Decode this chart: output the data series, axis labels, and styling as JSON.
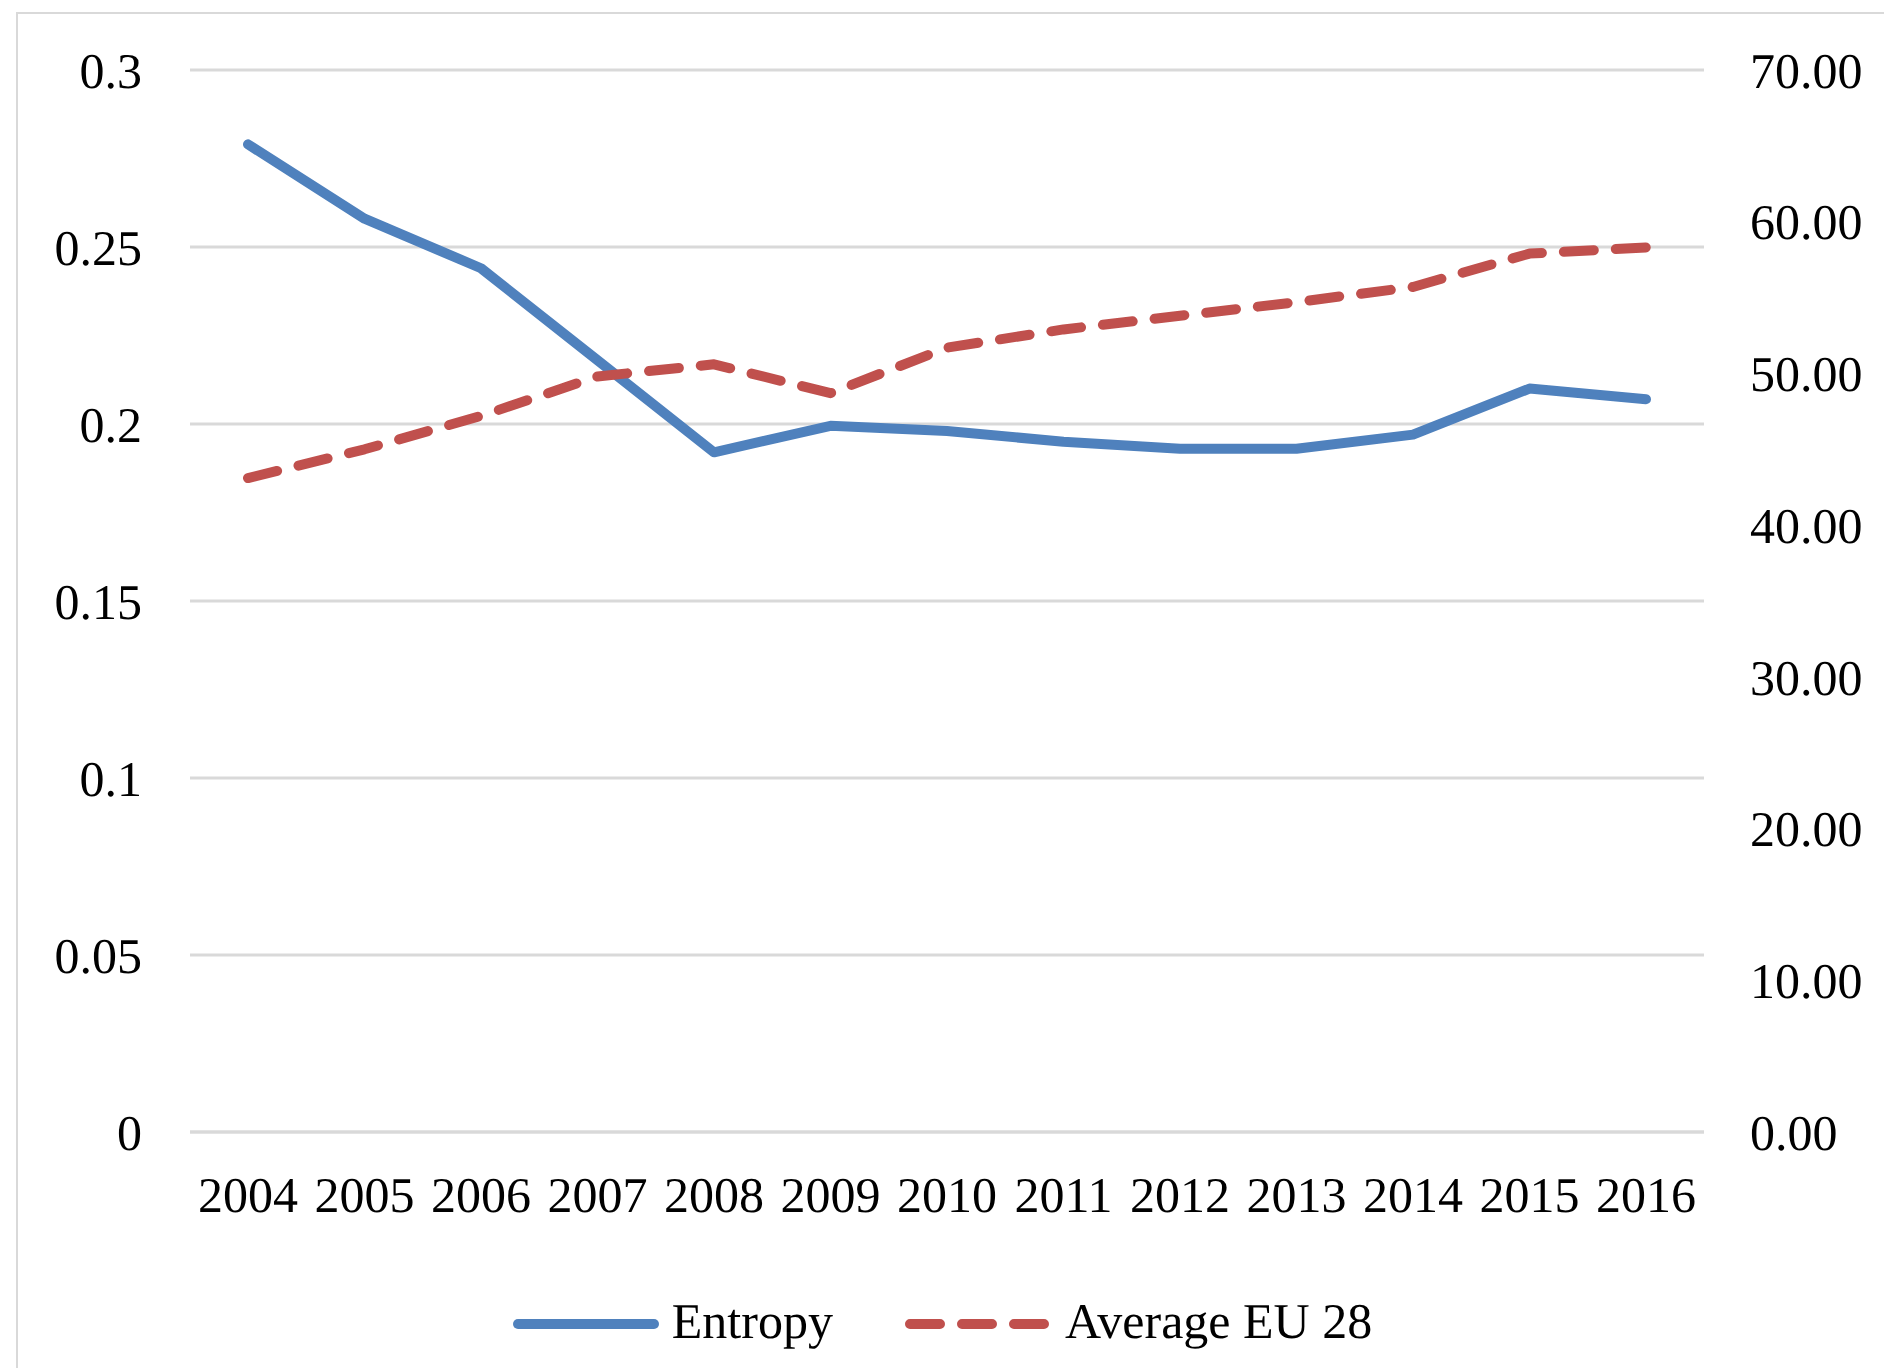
{
  "chart_data": {
    "type": "line",
    "categories": [
      "2004",
      "2005",
      "2006",
      "2007",
      "2008",
      "2009",
      "2010",
      "2011",
      "2012",
      "2013",
      "2014",
      "2015",
      "2016"
    ],
    "series": [
      {
        "name": "Entropy",
        "color": "#4f81bd",
        "values": [
          0.279,
          0.258,
          0.244,
          0.218,
          0.192,
          0.1995,
          0.198,
          0.195,
          0.193,
          0.193,
          0.197,
          0.21,
          0.207
        ]
      },
      {
        "name": "Average EU 28",
        "color": "#c0504d",
        "line_style": "dashed",
        "axis": "y2",
        "values": [
          43.1,
          45.0,
          47.2,
          49.8,
          50.6,
          48.7,
          51.7,
          52.9,
          53.8,
          54.7,
          55.7,
          57.9,
          58.3
        ]
      }
    ],
    "ylim": [
      0,
      0.3
    ],
    "yticks": [
      0,
      0.05,
      0.1,
      0.15,
      0.2,
      0.25,
      0.3
    ],
    "y2lim": [
      0,
      70
    ],
    "y2ticks": [
      {
        "value": 0,
        "label": "0.00"
      },
      {
        "value": 10,
        "label": "10.00"
      },
      {
        "value": 20,
        "label": "20.00"
      },
      {
        "value": 30,
        "label": "30.00"
      },
      {
        "value": 40,
        "label": "40.00"
      },
      {
        "value": 50,
        "label": "50.00"
      },
      {
        "value": 60,
        "label": "60.00"
      },
      {
        "value": 70,
        "label": "70.00"
      }
    ],
    "grid": "y",
    "legend": "bottom"
  }
}
